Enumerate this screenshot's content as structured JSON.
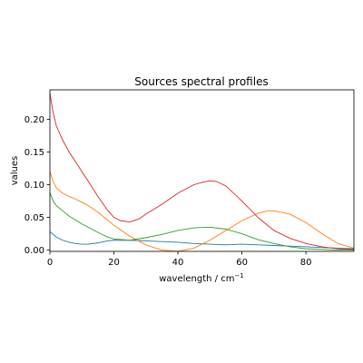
{
  "chart_data": {
    "type": "line",
    "title": "Sources spectral profiles",
    "xlabel": "wavelength / cm",
    "xlabel_superscript": "−1",
    "ylabel": "values",
    "xlim": [
      0,
      95
    ],
    "ylim": [
      -0.002,
      0.245
    ],
    "xticks": [
      0,
      20,
      40,
      60,
      80
    ],
    "yticks": [
      0.0,
      0.05,
      0.1,
      0.15,
      0.2
    ],
    "xtick_labels": [
      "0",
      "20",
      "40",
      "60",
      "80"
    ],
    "ytick_labels": [
      "0.00",
      "0.05",
      "0.10",
      "0.15",
      "0.20"
    ],
    "grid": false,
    "series": [
      {
        "color": "#1f77b4",
        "x": [
          0,
          2,
          4,
          6,
          8,
          10,
          12,
          15,
          18,
          20,
          25,
          30,
          35,
          40,
          45,
          50,
          55,
          60,
          65,
          70,
          75,
          80,
          85,
          90,
          95
        ],
        "y": [
          0.028,
          0.02,
          0.015,
          0.012,
          0.01,
          0.009,
          0.009,
          0.011,
          0.014,
          0.015,
          0.015,
          0.014,
          0.013,
          0.012,
          0.01,
          0.009,
          0.008,
          0.009,
          0.008,
          0.007,
          0.006,
          0.005,
          0.004,
          0.003,
          0.002
        ]
      },
      {
        "color": "#ff7f0e",
        "x": [
          0,
          1,
          2,
          4,
          6,
          8,
          10,
          12,
          15,
          18,
          20,
          25,
          30,
          35,
          40,
          45,
          50,
          55,
          60,
          65,
          68,
          70,
          75,
          80,
          85,
          90,
          95
        ],
        "y": [
          0.12,
          0.105,
          0.095,
          0.087,
          0.082,
          0.078,
          0.073,
          0.068,
          0.058,
          0.046,
          0.038,
          0.021,
          0.008,
          0.0,
          -0.002,
          0.003,
          0.015,
          0.03,
          0.045,
          0.056,
          0.06,
          0.06,
          0.055,
          0.042,
          0.025,
          0.01,
          0.003
        ]
      },
      {
        "color": "#2ca02c",
        "x": [
          0,
          1,
          2,
          4,
          6,
          8,
          10,
          12,
          15,
          18,
          20,
          25,
          30,
          35,
          40,
          45,
          50,
          55,
          60,
          65,
          70,
          75,
          80,
          85,
          90,
          95
        ],
        "y": [
          0.088,
          0.075,
          0.068,
          0.06,
          0.052,
          0.046,
          0.04,
          0.035,
          0.027,
          0.02,
          0.017,
          0.015,
          0.019,
          0.024,
          0.03,
          0.034,
          0.035,
          0.032,
          0.025,
          0.016,
          0.01,
          0.005,
          0.002,
          0.001,
          0.0,
          0.0
        ]
      },
      {
        "color": "#d62728",
        "x": [
          0,
          1,
          2,
          4,
          6,
          8,
          10,
          12,
          15,
          18,
          20,
          22,
          25,
          28,
          30,
          35,
          40,
          45,
          48,
          50,
          52,
          55,
          60,
          65,
          70,
          75,
          80,
          85,
          90,
          95
        ],
        "y": [
          0.24,
          0.21,
          0.19,
          0.168,
          0.15,
          0.135,
          0.12,
          0.105,
          0.082,
          0.061,
          0.05,
          0.045,
          0.043,
          0.048,
          0.055,
          0.07,
          0.087,
          0.1,
          0.104,
          0.106,
          0.105,
          0.098,
          0.075,
          0.05,
          0.03,
          0.018,
          0.01,
          0.005,
          0.002,
          0.001
        ]
      }
    ]
  }
}
